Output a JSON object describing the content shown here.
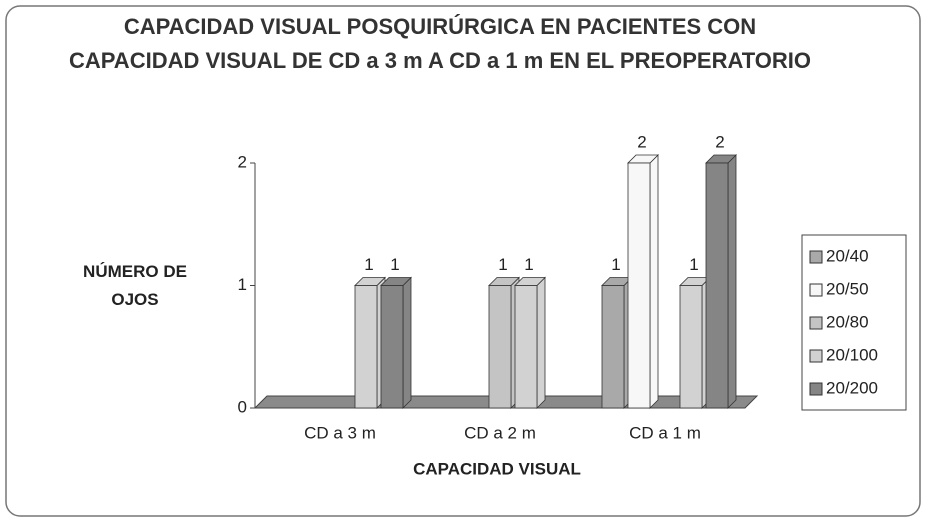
{
  "chart_data": {
    "type": "bar3d",
    "title": "CAPACIDAD VISUAL POSQUIRÚRGICA EN PACIENTES CON CAPACIDAD VISUAL DE CD a 3 m A CD a 1 m EN EL PREOPERATORIO",
    "ylabel": "NÚMERO DE OJOS",
    "xlabel": "CAPACIDAD VISUAL",
    "categories": [
      "CD a 3 m",
      "CD a 2 m",
      "CD a 1 m"
    ],
    "series": [
      {
        "name": "20/40",
        "color": "#a9a9a9",
        "values": [
          0,
          0,
          1
        ]
      },
      {
        "name": "20/50",
        "color": "#f7f7f7",
        "values": [
          0,
          0,
          2
        ]
      },
      {
        "name": "20/80",
        "color": "#c4c4c4",
        "values": [
          0,
          1,
          0
        ]
      },
      {
        "name": "20/100",
        "color": "#d2d2d2",
        "values": [
          1,
          1,
          1
        ]
      },
      {
        "name": "20/200",
        "color": "#858585",
        "values": [
          1,
          0,
          2
        ]
      }
    ],
    "ylim": [
      0,
      2
    ],
    "yticks": [
      0,
      1,
      2
    ],
    "legend": "right"
  }
}
